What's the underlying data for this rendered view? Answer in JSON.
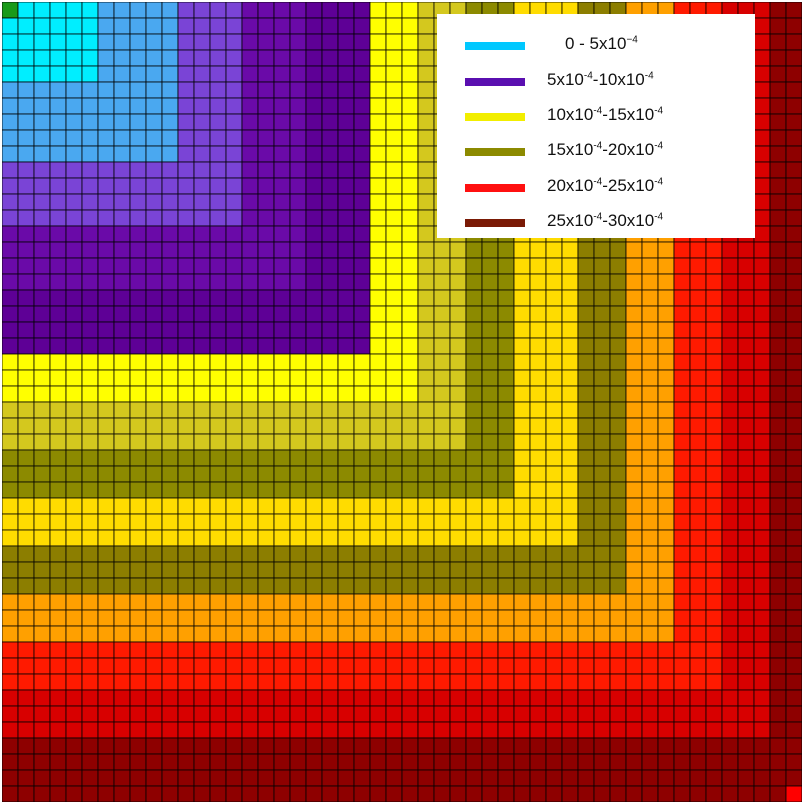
{
  "chart_data": {
    "type": "heatmap",
    "title": "",
    "xlabel": "",
    "ylabel": "",
    "grid": "on",
    "legend_position": "top-right",
    "grid_size": [
      50,
      50
    ],
    "colorbar_bins": [
      {
        "label_parts": [
          "0 - 5x10",
          "−4",
          ""
        ],
        "range": [
          0,
          0.0005
        ],
        "color": "#00c8ff"
      },
      {
        "label_parts": [
          "5x10",
          "-4",
          "-10x10",
          "-4"
        ],
        "range": [
          0.0005,
          0.001
        ],
        "color": "#5a0fb0"
      },
      {
        "label_parts": [
          "10x10",
          "-4",
          "-15x10",
          "-4"
        ],
        "range": [
          0.001,
          0.0015
        ],
        "color": "#f2ee00"
      },
      {
        "label_parts": [
          "15x10",
          "-4",
          "-20x10",
          "-4"
        ],
        "range": [
          0.0015,
          0.002
        ],
        "color": "#8c8a00"
      },
      {
        "label_parts": [
          "20x10",
          "-4",
          "-25x10",
          "-4"
        ],
        "range": [
          0.002,
          0.0025
        ],
        "color": "#ff1010"
      },
      {
        "label_parts": [
          "25x10",
          "-4",
          "-30x10",
          "-4"
        ],
        "range": [
          0.0025,
          0.003
        ],
        "color": "#7a1a05"
      }
    ],
    "cell_bands": [
      {
        "level": 0.1,
        "color": "#00eeff"
      },
      {
        "level": 0.2,
        "color": "#4aa8f0"
      },
      {
        "level": 0.28,
        "color": "#7a44d6"
      },
      {
        "level": 0.36,
        "color": "#6a0aa8"
      },
      {
        "level": 0.44,
        "color": "#5e0096"
      },
      {
        "level": 0.5,
        "color": "#ffff00"
      },
      {
        "level": 0.56,
        "color": "#d4c81e"
      },
      {
        "level": 0.62,
        "color": "#8c8a00"
      },
      {
        "level": 0.68,
        "color": "#ffdc00"
      },
      {
        "level": 0.74,
        "color": "#8c7e00"
      },
      {
        "level": 0.8,
        "color": "#ffa000"
      },
      {
        "level": 0.87,
        "color": "#ff1a00"
      },
      {
        "level": 0.93,
        "color": "#d80000"
      },
      {
        "level": 1.01,
        "color": "#8e0000"
      }
    ],
    "corner_cells": [
      {
        "row": 0,
        "col": 0,
        "color": "#1a9a1a"
      },
      {
        "row": 49,
        "col": 49,
        "color": "#ff0000"
      }
    ]
  }
}
